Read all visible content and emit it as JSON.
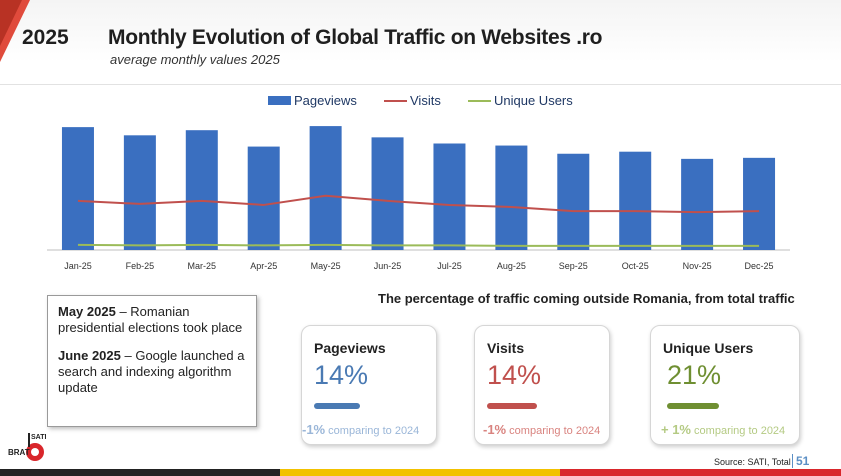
{
  "header": {
    "year": "2025",
    "title": "Monthly Evolution of Global Traffic on Websites .ro",
    "subtitle": "average monthly values 2025"
  },
  "chart_data": {
    "type": "bar",
    "categories": [
      "Jan-25",
      "Feb-25",
      "Mar-25",
      "Apr-25",
      "May-25",
      "Jun-25",
      "Jul-25",
      "Aug-25",
      "Sep-25",
      "Oct-25",
      "Nov-25",
      "Dec-25"
    ],
    "series": [
      {
        "name": "Pageviews",
        "type": "bar",
        "color": "#3a6fc0",
        "values": [
          120,
          112,
          117,
          101,
          121,
          110,
          104,
          102,
          94,
          96,
          89,
          90
        ]
      },
      {
        "name": "Visits",
        "type": "line",
        "color": "#c0504d",
        "values": [
          48,
          45,
          48,
          44,
          53,
          48,
          44,
          42,
          38,
          38,
          37,
          38
        ]
      },
      {
        "name": "Unique Users",
        "type": "line",
        "color": "#9bbb59",
        "values": [
          5,
          4.5,
          5,
          4.5,
          5,
          4.5,
          4.5,
          4,
          4,
          4,
          4,
          4
        ]
      }
    ],
    "ylim": [
      0,
      125
    ],
    "grid": false,
    "legend_position": "top-center"
  },
  "notes": [
    {
      "bold": "May 2025",
      "text": " – Romanian presidential elections took place"
    },
    {
      "bold": "June 2025",
      "text": " – Google launched a search and indexing algorithm update"
    }
  ],
  "pct_heading": "The percentage of traffic coming outside Romania, from total traffic",
  "cards": [
    {
      "title": "Pageviews",
      "value": "14%",
      "color": "#4a7ab3",
      "bar_color": "#4a7ab3",
      "cmp_num": "-1%",
      "cmp_text": " comparing to 2024",
      "cmp_color": "#9ab6d8"
    },
    {
      "title": "Visits",
      "value": "14%",
      "color": "#c0504d",
      "bar_color": "#c0504d",
      "cmp_num": "-1%",
      "cmp_text": " comparing to 2024",
      "cmp_color": "#d9837f"
    },
    {
      "title": "Unique Users",
      "value": "21%",
      "color": "#6f8f32",
      "bar_color": "#6f8f32",
      "cmp_num": "+  1%",
      "cmp_text": " comparing to 2024",
      "cmp_color": "#b4ca83"
    }
  ],
  "logo": {
    "name": "SATI",
    "sub": "BRAT"
  },
  "footer": {
    "source": "Source: SATI, Total",
    "page": "51"
  }
}
